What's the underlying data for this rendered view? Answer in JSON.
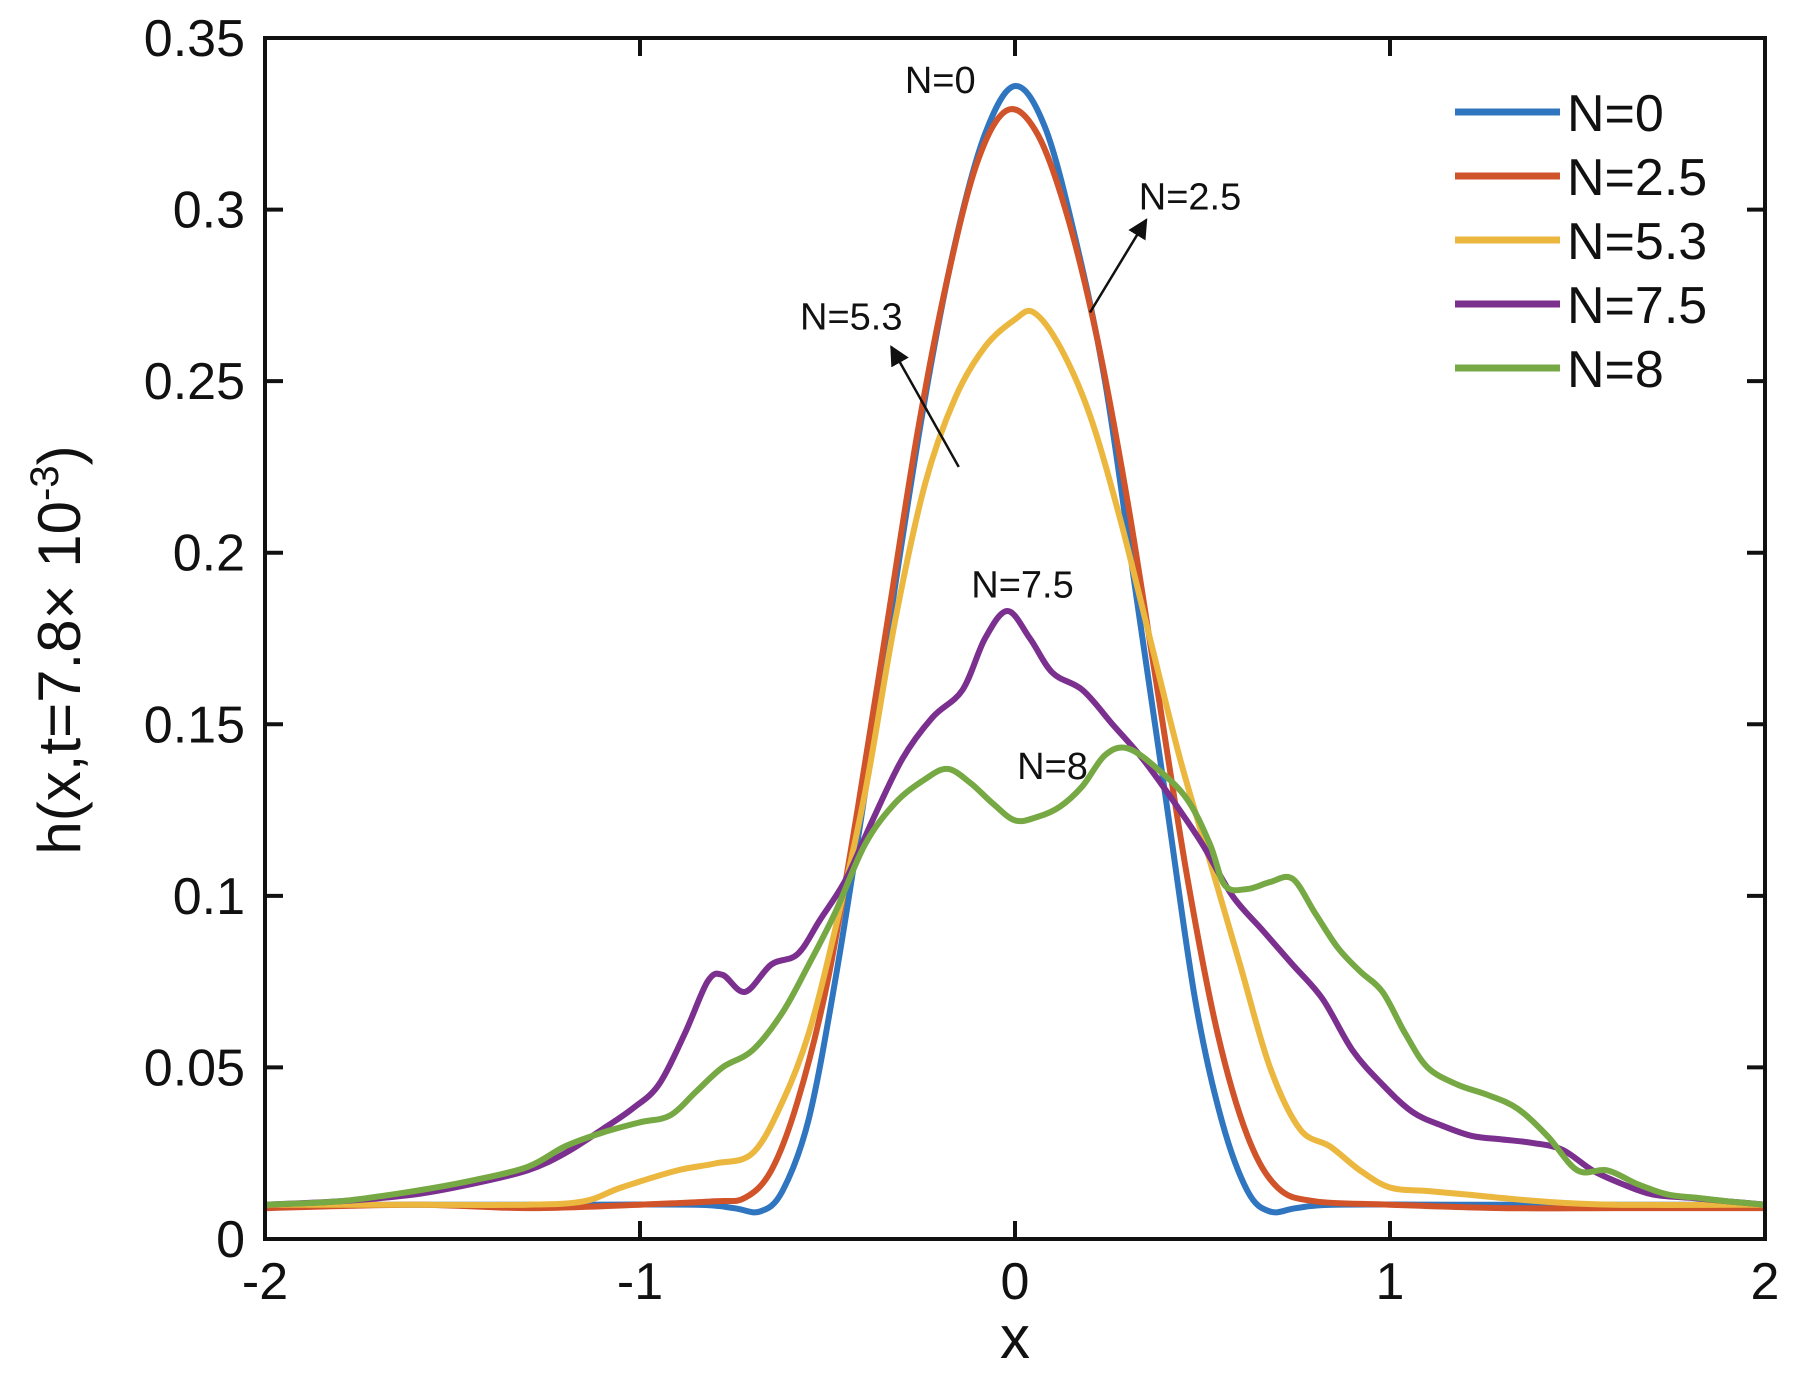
{
  "chart_data": {
    "type": "line",
    "title": "",
    "xlabel": "x",
    "ylabel": "h(x,t=7.8× 10",
    "ylabel_exponent": "-3",
    "ylabel_suffix": ")",
    "xlim": [
      -2,
      2
    ],
    "ylim": [
      0,
      0.35
    ],
    "grid": false,
    "legend_position": "top-right",
    "x_ticks": [
      -2,
      -1,
      0,
      1,
      2
    ],
    "x_tick_labels": [
      "-2",
      "-1",
      "0",
      "1",
      "2"
    ],
    "y_ticks": [
      0,
      0.05,
      0.1,
      0.15,
      0.2,
      0.25,
      0.3,
      0.35
    ],
    "y_tick_labels": [
      "0",
      "0.05",
      "0.1",
      "0.15",
      "0.2",
      "0.25",
      "0.3",
      "0.35"
    ],
    "series": [
      {
        "name": "N=0",
        "color": "#2f75bf",
        "points": [
          [
            -2,
            0.01
          ],
          [
            -1.2,
            0.01
          ],
          [
            -0.85,
            0.01
          ],
          [
            -0.75,
            0.009
          ],
          [
            -0.68,
            0.008
          ],
          [
            -0.62,
            0.014
          ],
          [
            -0.55,
            0.035
          ],
          [
            -0.48,
            0.075
          ],
          [
            -0.4,
            0.13
          ],
          [
            -0.32,
            0.19
          ],
          [
            -0.24,
            0.245
          ],
          [
            -0.16,
            0.29
          ],
          [
            -0.08,
            0.322
          ],
          [
            0,
            0.336
          ],
          [
            0.08,
            0.324
          ],
          [
            0.16,
            0.292
          ],
          [
            0.24,
            0.25
          ],
          [
            0.32,
            0.19
          ],
          [
            0.4,
            0.13
          ],
          [
            0.48,
            0.07
          ],
          [
            0.55,
            0.035
          ],
          [
            0.62,
            0.014
          ],
          [
            0.68,
            0.008
          ],
          [
            0.75,
            0.009
          ],
          [
            0.85,
            0.01
          ],
          [
            1.2,
            0.01
          ],
          [
            2,
            0.01
          ]
        ]
      },
      {
        "name": "N=2.5",
        "color": "#d0532a",
        "points": [
          [
            -2,
            0.009
          ],
          [
            -1.6,
            0.01
          ],
          [
            -1.3,
            0.009
          ],
          [
            -1,
            0.01
          ],
          [
            -0.8,
            0.011
          ],
          [
            -0.72,
            0.012
          ],
          [
            -0.65,
            0.02
          ],
          [
            -0.58,
            0.04
          ],
          [
            -0.5,
            0.075
          ],
          [
            -0.42,
            0.125
          ],
          [
            -0.34,
            0.18
          ],
          [
            -0.26,
            0.235
          ],
          [
            -0.18,
            0.28
          ],
          [
            -0.1,
            0.314
          ],
          [
            -0.02,
            0.329
          ],
          [
            0.06,
            0.322
          ],
          [
            0.14,
            0.298
          ],
          [
            0.22,
            0.262
          ],
          [
            0.3,
            0.215
          ],
          [
            0.38,
            0.16
          ],
          [
            0.46,
            0.105
          ],
          [
            0.54,
            0.06
          ],
          [
            0.62,
            0.03
          ],
          [
            0.7,
            0.015
          ],
          [
            0.8,
            0.011
          ],
          [
            1,
            0.01
          ],
          [
            1.3,
            0.009
          ],
          [
            1.6,
            0.009
          ],
          [
            2,
            0.009
          ]
        ]
      },
      {
        "name": "N=5.3",
        "color": "#ebb73e",
        "points": [
          [
            -2,
            0.01
          ],
          [
            -1.6,
            0.01
          ],
          [
            -1.3,
            0.01
          ],
          [
            -1.15,
            0.011
          ],
          [
            -1.05,
            0.015
          ],
          [
            -0.9,
            0.02
          ],
          [
            -0.8,
            0.022
          ],
          [
            -0.7,
            0.025
          ],
          [
            -0.62,
            0.04
          ],
          [
            -0.55,
            0.06
          ],
          [
            -0.48,
            0.09
          ],
          [
            -0.4,
            0.13
          ],
          [
            -0.32,
            0.18
          ],
          [
            -0.24,
            0.22
          ],
          [
            -0.16,
            0.245
          ],
          [
            -0.08,
            0.26
          ],
          [
            0,
            0.268
          ],
          [
            0.05,
            0.27
          ],
          [
            0.12,
            0.26
          ],
          [
            0.2,
            0.24
          ],
          [
            0.28,
            0.21
          ],
          [
            0.36,
            0.175
          ],
          [
            0.44,
            0.14
          ],
          [
            0.52,
            0.11
          ],
          [
            0.6,
            0.08
          ],
          [
            0.68,
            0.05
          ],
          [
            0.76,
            0.032
          ],
          [
            0.84,
            0.027
          ],
          [
            0.92,
            0.02
          ],
          [
            1,
            0.015
          ],
          [
            1.1,
            0.014
          ],
          [
            1.2,
            0.013
          ],
          [
            1.4,
            0.011
          ],
          [
            1.6,
            0.01
          ],
          [
            2,
            0.01
          ]
        ]
      },
      {
        "name": "N=7.5",
        "color": "#7b2f8e",
        "points": [
          [
            -2,
            0.01
          ],
          [
            -1.8,
            0.011
          ],
          [
            -1.6,
            0.013
          ],
          [
            -1.45,
            0.016
          ],
          [
            -1.3,
            0.02
          ],
          [
            -1.2,
            0.025
          ],
          [
            -1.1,
            0.032
          ],
          [
            -1.02,
            0.038
          ],
          [
            -0.95,
            0.045
          ],
          [
            -0.88,
            0.06
          ],
          [
            -0.82,
            0.075
          ],
          [
            -0.78,
            0.077
          ],
          [
            -0.72,
            0.072
          ],
          [
            -0.65,
            0.08
          ],
          [
            -0.58,
            0.083
          ],
          [
            -0.52,
            0.093
          ],
          [
            -0.45,
            0.105
          ],
          [
            -0.38,
            0.122
          ],
          [
            -0.3,
            0.14
          ],
          [
            -0.22,
            0.152
          ],
          [
            -0.14,
            0.16
          ],
          [
            -0.08,
            0.175
          ],
          [
            -0.02,
            0.183
          ],
          [
            0.04,
            0.175
          ],
          [
            0.1,
            0.165
          ],
          [
            0.18,
            0.16
          ],
          [
            0.26,
            0.15
          ],
          [
            0.34,
            0.14
          ],
          [
            0.42,
            0.128
          ],
          [
            0.5,
            0.115
          ],
          [
            0.58,
            0.1
          ],
          [
            0.66,
            0.09
          ],
          [
            0.74,
            0.08
          ],
          [
            0.82,
            0.07
          ],
          [
            0.9,
            0.055
          ],
          [
            0.98,
            0.045
          ],
          [
            1.06,
            0.037
          ],
          [
            1.14,
            0.033
          ],
          [
            1.22,
            0.03
          ],
          [
            1.3,
            0.029
          ],
          [
            1.38,
            0.028
          ],
          [
            1.46,
            0.026
          ],
          [
            1.54,
            0.02
          ],
          [
            1.62,
            0.016
          ],
          [
            1.7,
            0.013
          ],
          [
            1.8,
            0.012
          ],
          [
            1.9,
            0.011
          ],
          [
            2,
            0.01
          ]
        ]
      },
      {
        "name": "N=8",
        "color": "#76a844",
        "points": [
          [
            -2,
            0.01
          ],
          [
            -1.8,
            0.011
          ],
          [
            -1.6,
            0.014
          ],
          [
            -1.45,
            0.017
          ],
          [
            -1.3,
            0.021
          ],
          [
            -1.2,
            0.027
          ],
          [
            -1.1,
            0.031
          ],
          [
            -1,
            0.034
          ],
          [
            -0.92,
            0.036
          ],
          [
            -0.85,
            0.043
          ],
          [
            -0.78,
            0.05
          ],
          [
            -0.7,
            0.055
          ],
          [
            -0.62,
            0.066
          ],
          [
            -0.55,
            0.08
          ],
          [
            -0.48,
            0.095
          ],
          [
            -0.4,
            0.115
          ],
          [
            -0.32,
            0.127
          ],
          [
            -0.24,
            0.134
          ],
          [
            -0.18,
            0.137
          ],
          [
            -0.12,
            0.133
          ],
          [
            -0.06,
            0.127
          ],
          [
            0,
            0.122
          ],
          [
            0.06,
            0.123
          ],
          [
            0.12,
            0.126
          ],
          [
            0.18,
            0.132
          ],
          [
            0.24,
            0.141
          ],
          [
            0.3,
            0.143
          ],
          [
            0.38,
            0.137
          ],
          [
            0.46,
            0.128
          ],
          [
            0.52,
            0.115
          ],
          [
            0.56,
            0.103
          ],
          [
            0.62,
            0.102
          ],
          [
            0.68,
            0.104
          ],
          [
            0.74,
            0.105
          ],
          [
            0.8,
            0.095
          ],
          [
            0.86,
            0.085
          ],
          [
            0.92,
            0.078
          ],
          [
            0.98,
            0.072
          ],
          [
            1.04,
            0.06
          ],
          [
            1.1,
            0.05
          ],
          [
            1.18,
            0.045
          ],
          [
            1.26,
            0.042
          ],
          [
            1.34,
            0.038
          ],
          [
            1.42,
            0.03
          ],
          [
            1.5,
            0.02
          ],
          [
            1.58,
            0.02
          ],
          [
            1.66,
            0.016
          ],
          [
            1.74,
            0.013
          ],
          [
            1.82,
            0.012
          ],
          [
            1.9,
            0.011
          ],
          [
            2,
            0.01
          ]
        ]
      }
    ],
    "annotations": [
      {
        "text": "N=0",
        "series": "N=0"
      },
      {
        "text": "N=2.5",
        "series": "N=2.5",
        "arrow": true
      },
      {
        "text": "N=5.3",
        "series": "N=5.3",
        "arrow": true
      },
      {
        "text": "N=7.5",
        "series": "N=7.5"
      },
      {
        "text": "N=8",
        "series": "N=8"
      }
    ]
  }
}
